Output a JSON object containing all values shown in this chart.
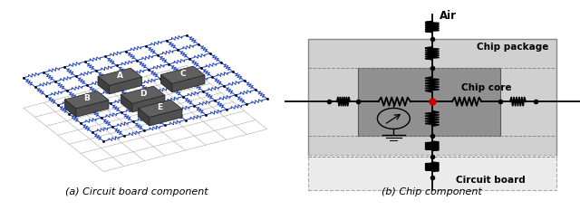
{
  "fig_width": 6.4,
  "fig_height": 2.43,
  "dpi": 100,
  "bg_color": "#ffffff",
  "caption_a": "(a) Circuit board component",
  "caption_b": "(b) Chip component",
  "chip_labels": [
    "A",
    "B",
    "C",
    "D",
    "E"
  ],
  "grid_color_blue": "#2244bb",
  "grid_color_gray": "#aaaaaa",
  "hot_node_color": "#cc0000",
  "text_color": "#000000",
  "caption_fontsize": 8
}
